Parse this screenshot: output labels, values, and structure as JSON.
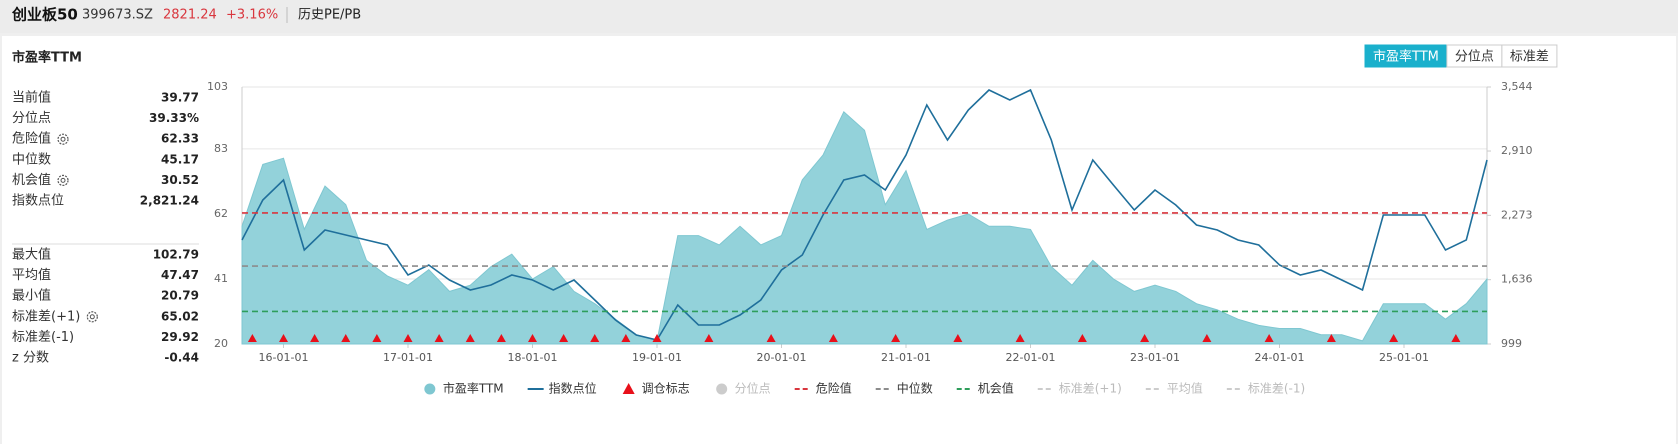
{
  "header": {
    "title": "创业板50",
    "code": "399673.SZ",
    "price": 2821.24,
    "change": {
      "value": 3.16,
      "label": "+3.16%"
    },
    "link": "历史PE/PB"
  },
  "panel": {
    "title": "市盈率TTM",
    "tabs": [
      "市盈率TTM",
      "分位点",
      "标准差"
    ],
    "active_tab": 0
  },
  "stats": [
    {
      "label": "当前值",
      "value": 39.77
    },
    {
      "label": "分位点",
      "value": 39.33,
      "value_label": "39.33%"
    },
    {
      "label": "危险值",
      "value": 62.33,
      "settings_icon": true
    },
    {
      "label": "中位数",
      "value": 45.17
    },
    {
      "label": "机会值",
      "value": 30.52,
      "settings_icon": true
    },
    {
      "label": "指数点位",
      "value": 2821.24,
      "value_label": "2,821.24"
    }
  ],
  "stats2": [
    {
      "label": "最大值",
      "value": 102.79
    },
    {
      "label": "平均值",
      "value": 47.47
    },
    {
      "label": "最小值",
      "value": 20.79
    },
    {
      "label": "标准差(+1)",
      "value": 65.02,
      "settings_icon": true
    },
    {
      "label": "标准差(-1)",
      "value": 29.92
    },
    {
      "label": "z 分数",
      "value": -0.44
    }
  ],
  "chart_data": {
    "type": "area",
    "x": [
      "15-09-01",
      "15-11-01",
      "16-01-01",
      "16-03-01",
      "16-05-01",
      "16-07-01",
      "16-09-01",
      "16-11-01",
      "17-01-01",
      "17-03-01",
      "17-05-01",
      "17-07-01",
      "17-09-01",
      "17-11-01",
      "18-01-01",
      "18-03-01",
      "18-05-01",
      "18-07-01",
      "18-09-01",
      "18-11-01",
      "19-01-01",
      "19-03-01",
      "19-05-01",
      "19-07-01",
      "19-09-01",
      "19-11-01",
      "20-01-01",
      "20-03-01",
      "20-05-01",
      "20-07-01",
      "20-09-01",
      "20-11-01",
      "21-01-01",
      "21-03-01",
      "21-05-01",
      "21-07-01",
      "21-09-01",
      "21-11-01",
      "22-01-01",
      "22-03-01",
      "22-05-01",
      "22-07-01",
      "22-09-01",
      "22-11-01",
      "23-01-01",
      "23-03-01",
      "23-05-01",
      "23-07-01",
      "23-09-01",
      "23-11-01",
      "24-01-01",
      "24-03-01",
      "24-05-01",
      "24-07-01",
      "24-09-01",
      "24-11-01",
      "25-01-01",
      "25-03-01",
      "25-05-01",
      "25-07-01",
      "25-09-01"
    ],
    "xlim": [
      "15-09-01",
      "25-09-01"
    ],
    "xticks": [
      "16-01-01",
      "17-01-01",
      "18-01-01",
      "19-01-01",
      "20-01-01",
      "21-01-01",
      "22-01-01",
      "23-01-01",
      "24-01-01",
      "25-01-01"
    ],
    "series": [
      {
        "mark": "area",
        "color": "#93d2da",
        "stroke": "#7fc7d1",
        "values": [
          58,
          78,
          80,
          57,
          71,
          65,
          47,
          42,
          39,
          44,
          37,
          39,
          45,
          49,
          41,
          45,
          37,
          33,
          28,
          23,
          21,
          55,
          55,
          52,
          58,
          52,
          55,
          73,
          81,
          95,
          89,
          65,
          76,
          57,
          60,
          62,
          58,
          58,
          57,
          45,
          39,
          47,
          41,
          37,
          39,
          37,
          33,
          31,
          28,
          26,
          25,
          25,
          23,
          23,
          21,
          33,
          33,
          33,
          28,
          33,
          41
        ]
      },
      {
        "mark": "line",
        "axis": "y2",
        "color": "#1f6f9b",
        "values": [
          2029,
          2425,
          2623,
          1930,
          2128,
          2078,
          2029,
          1979,
          1682,
          1781,
          1633,
          1534,
          1583,
          1682,
          1633,
          1534,
          1633,
          1435,
          1237,
          1088,
          1039,
          1385,
          1187,
          1187,
          1286,
          1435,
          1732,
          1880,
          2276,
          2623,
          2673,
          2524,
          2871,
          3366,
          3019,
          3316,
          3514,
          3415,
          3514,
          3019,
          2326,
          2821,
          2573,
          2326,
          2524,
          2375,
          2177,
          2128,
          2029,
          1979,
          1781,
          1682,
          1732,
          1633,
          1534,
          2276,
          2276,
          2276,
          1930,
          2029,
          2821
        ]
      }
    ],
    "markers": {
      "color": "#e8101a",
      "dates": [
        "15-10-01",
        "16-01-01",
        "16-04-01",
        "16-07-01",
        "16-10-01",
        "17-01-01",
        "17-04-01",
        "17-07-01",
        "17-10-01",
        "18-01-01",
        "18-04-01",
        "18-07-01",
        "18-10-01",
        "19-01-01",
        "19-06-01",
        "19-12-01",
        "20-06-01",
        "20-12-01",
        "21-06-01",
        "21-12-01",
        "22-06-01",
        "22-12-01",
        "23-06-01",
        "23-12-01",
        "24-06-01",
        "24-12-01",
        "25-06-01"
      ]
    },
    "reference_lines": [
      {
        "value": 62.33,
        "color": "#d9363e"
      },
      {
        "value": 45.17,
        "color": "#8c8c8c"
      },
      {
        "value": 30.52,
        "color": "#2e9e5b"
      }
    ],
    "ylim": [
      20,
      103
    ],
    "yticks": [
      20,
      41,
      62,
      83,
      103
    ],
    "y2lim": [
      999,
      3544
    ],
    "y2ticks": [
      999,
      {
        "value": 1636,
        "label": "1,636"
      },
      {
        "value": 2273,
        "label": "2,273"
      },
      {
        "value": 2910,
        "label": "2,910"
      },
      {
        "value": 3544,
        "label": "3,544"
      }
    ],
    "grid": true,
    "legend": [
      {
        "name": "市盈率TTM",
        "symbol": "circle",
        "color": "#7fc7d1",
        "active": true
      },
      {
        "name": "指数点位",
        "symbol": "line",
        "color": "#1f6f9b",
        "active": true
      },
      {
        "name": "调仓标志",
        "symbol": "triangle",
        "color": "#e8101a",
        "active": true
      },
      {
        "name": "分位点",
        "symbol": "circle",
        "color": "#cccccc",
        "active": false
      },
      {
        "name": "危险值",
        "symbol": "dash",
        "color": "#d9363e",
        "active": true
      },
      {
        "name": "中位数",
        "symbol": "dash",
        "color": "#8c8c8c",
        "active": true
      },
      {
        "name": "机会值",
        "symbol": "dash",
        "color": "#2e9e5b",
        "active": true
      },
      {
        "name": "标准差(+1)",
        "symbol": "dash",
        "color": "#cccccc",
        "active": false
      },
      {
        "name": "平均值",
        "symbol": "dash",
        "color": "#cccccc",
        "active": false
      },
      {
        "name": "标准差(-1)",
        "symbol": "dash",
        "color": "#cccccc",
        "active": false
      }
    ]
  }
}
